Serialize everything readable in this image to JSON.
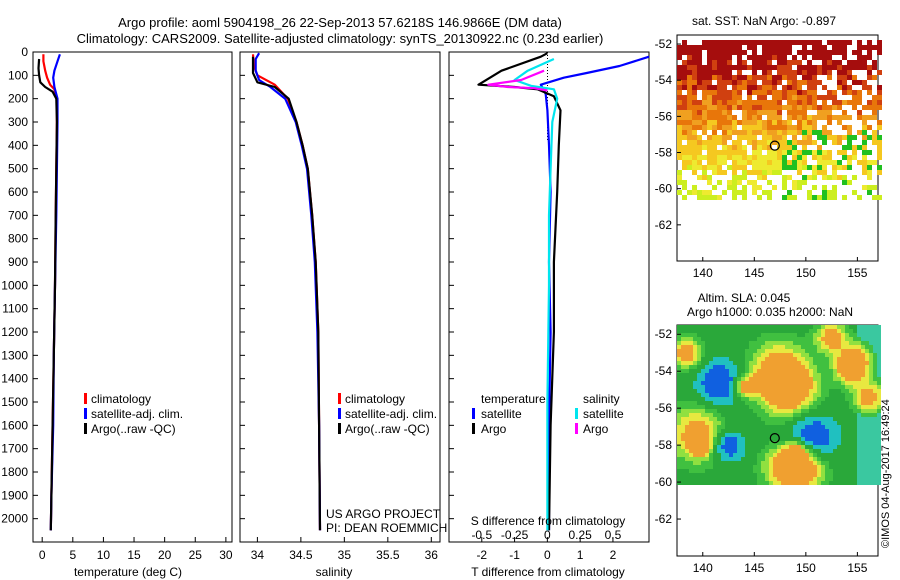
{
  "titles": {
    "line1": "Argo profile: aoml 5904198_26 22-Sep-2013 57.6218S 146.9866E (DM data)",
    "line2": "Climatology: CARS2009. Satellite-adjusted climatology: synTS_20130922.nc (0.23d earlier)"
  },
  "credit": "©IMOS 04-Aug-2017 16:49:24",
  "project": {
    "line1": "US ARGO PROJECT",
    "line2": "PI: DEAN ROEMMICH"
  },
  "colors": {
    "climatology": "#ff0000",
    "satellite": "#0000ff",
    "argo": "#000000",
    "argo_s": "#ff00ff",
    "sat_s": "#00e5ee"
  },
  "depth_axis": {
    "ticks": [
      0,
      100,
      200,
      300,
      400,
      500,
      600,
      700,
      800,
      900,
      1000,
      1100,
      1200,
      1300,
      1400,
      1500,
      1600,
      1700,
      1800,
      1900,
      2000
    ],
    "ylim": [
      0,
      2100
    ]
  },
  "chart_data": [
    {
      "type": "line",
      "title": "",
      "xlabel": "temperature (deg C)",
      "ylabel": "",
      "xlim": [
        -1.5,
        31
      ],
      "ylim": [
        2100,
        0
      ],
      "xticks": [
        0,
        5,
        10,
        15,
        20,
        25,
        30
      ],
      "xtick_labels": [
        "0",
        "5",
        "10",
        "15",
        "20",
        "25",
        "30"
      ],
      "legend": [
        "climatology",
        "satellite-adj. clim.",
        "Argo(..raw -QC)"
      ],
      "series": [
        {
          "name": "climatology",
          "color": "#ff0000",
          "points": [
            [
              0.2,
              10
            ],
            [
              0.2,
              40
            ],
            [
              0.5,
              80
            ],
            [
              0.8,
              110
            ],
            [
              1.3,
              140
            ],
            [
              2.0,
              160
            ],
            [
              2.4,
              200
            ],
            [
              2.4,
              300
            ],
            [
              2.3,
              500
            ],
            [
              2.2,
              700
            ],
            [
              2.1,
              1000
            ],
            [
              1.9,
              1300
            ],
            [
              1.7,
              1600
            ],
            [
              1.5,
              1900
            ],
            [
              1.4,
              2050
            ]
          ]
        },
        {
          "name": "satellite-adj. clim.",
          "color": "#0000ff",
          "points": [
            [
              2.9,
              10
            ],
            [
              2.5,
              40
            ],
            [
              2.0,
              80
            ],
            [
              1.8,
              110
            ],
            [
              2.0,
              150
            ],
            [
              2.5,
              200
            ],
            [
              2.5,
              300
            ],
            [
              2.4,
              500
            ],
            [
              2.3,
              700
            ],
            [
              2.1,
              1000
            ],
            [
              1.9,
              1300
            ],
            [
              1.8,
              1600
            ],
            [
              1.5,
              1900
            ],
            [
              1.4,
              2050
            ]
          ]
        },
        {
          "name": "Argo(..raw -QC)",
          "color": "#000000",
          "points": [
            [
              -0.5,
              30
            ],
            [
              -0.6,
              70
            ],
            [
              -0.5,
              100
            ],
            [
              -0.3,
              130
            ],
            [
              0.5,
              150
            ],
            [
              1.7,
              170
            ],
            [
              2.3,
              200
            ],
            [
              2.4,
              300
            ],
            [
              2.3,
              500
            ],
            [
              2.2,
              700
            ],
            [
              2.1,
              1000
            ],
            [
              1.9,
              1300
            ],
            [
              1.7,
              1600
            ],
            [
              1.5,
              1900
            ],
            [
              1.4,
              2050
            ]
          ]
        }
      ]
    },
    {
      "type": "line",
      "title": "",
      "xlabel": "salinity",
      "ylabel": "",
      "xlim": [
        33.8,
        36.1
      ],
      "ylim": [
        2100,
        0
      ],
      "xticks": [
        34,
        34.5,
        35,
        35.5,
        36
      ],
      "xtick_labels": [
        "34",
        "34.5",
        "35",
        "35.5",
        "36"
      ],
      "legend": [
        "climatology",
        "satellite-adj. clim.",
        "Argo(..raw -QC)"
      ],
      "series": [
        {
          "name": "climatology",
          "color": "#ff0000",
          "points": [
            [
              33.95,
              10
            ],
            [
              33.96,
              60
            ],
            [
              34.0,
              100
            ],
            [
              34.2,
              140
            ],
            [
              34.35,
              200
            ],
            [
              34.45,
              300
            ],
            [
              34.52,
              400
            ],
            [
              34.58,
              500
            ],
            [
              34.63,
              700
            ],
            [
              34.67,
              900
            ],
            [
              34.7,
              1200
            ],
            [
              34.71,
              1600
            ],
            [
              34.72,
              2050
            ]
          ]
        },
        {
          "name": "satellite-adj. clim.",
          "color": "#0000ff",
          "points": [
            [
              34.02,
              5
            ],
            [
              33.98,
              30
            ],
            [
              33.98,
              80
            ],
            [
              34.02,
              120
            ],
            [
              34.15,
              150
            ],
            [
              34.32,
              200
            ],
            [
              34.44,
              300
            ],
            [
              34.51,
              400
            ],
            [
              34.57,
              500
            ],
            [
              34.62,
              700
            ],
            [
              34.66,
              900
            ],
            [
              34.69,
              1200
            ],
            [
              34.71,
              1600
            ],
            [
              34.72,
              2050
            ]
          ]
        },
        {
          "name": "Argo(..raw -QC)",
          "color": "#000000",
          "points": [
            [
              33.95,
              20
            ],
            [
              33.95,
              90
            ],
            [
              34.0,
              130
            ],
            [
              34.2,
              150
            ],
            [
              34.36,
              200
            ],
            [
              34.45,
              300
            ],
            [
              34.52,
              400
            ],
            [
              34.58,
              500
            ],
            [
              34.63,
              700
            ],
            [
              34.67,
              900
            ],
            [
              34.7,
              1200
            ],
            [
              34.71,
              1600
            ],
            [
              34.72,
              2050
            ]
          ]
        }
      ]
    },
    {
      "type": "line",
      "title": "",
      "xlabel": "T difference from climatology",
      "ylabel": "",
      "xlabel_top": "S difference from climatology",
      "xlim": [
        -3.0,
        3.1
      ],
      "ylim": [
        2100,
        0
      ],
      "xticks": [
        -2,
        -1,
        0,
        1,
        2
      ],
      "xtick_labels": [
        "-2",
        "-1",
        "0",
        "1",
        "2"
      ],
      "xticks_top": [
        -2,
        -1,
        0,
        1,
        2
      ],
      "xtick_labels_top": [
        "-0.5",
        "-0.25",
        "0",
        "0.25",
        "0.5"
      ],
      "legend_headers": [
        "temperature",
        "salinity"
      ],
      "legend": [
        "satellite",
        "Argo",
        "satellite",
        "Argo"
      ],
      "series": [
        {
          "name": "temperature satellite",
          "color": "#0000ff",
          "points": [
            [
              3.1,
              20
            ],
            [
              2.2,
              60
            ],
            [
              1.2,
              90
            ],
            [
              0.5,
              110
            ],
            [
              -0.2,
              140
            ],
            [
              -0.05,
              180
            ],
            [
              0.0,
              250
            ],
            [
              0.05,
              400
            ],
            [
              0.1,
              600
            ],
            [
              0.05,
              900
            ],
            [
              0.1,
              1200
            ],
            [
              0.05,
              1600
            ],
            [
              0.05,
              2050
            ]
          ]
        },
        {
          "name": "temperature Argo",
          "color": "#000000",
          "points": [
            [
              0.0,
              5
            ],
            [
              -0.2,
              20
            ],
            [
              -1.4,
              80
            ],
            [
              -2.1,
              140
            ],
            [
              -1.0,
              150
            ],
            [
              -0.3,
              160
            ],
            [
              0.2,
              190
            ],
            [
              0.4,
              250
            ],
            [
              0.35,
              400
            ],
            [
              0.3,
              600
            ],
            [
              0.2,
              900
            ],
            [
              0.2,
              1200
            ],
            [
              0.1,
              1600
            ],
            [
              0.05,
              2050
            ]
          ]
        },
        {
          "name": "salinity satellite",
          "color": "#00e5ee",
          "points": [
            [
              0.2,
              30
            ],
            [
              -0.6,
              80
            ],
            [
              -1.0,
              120
            ],
            [
              -0.5,
              145
            ],
            [
              0.2,
              160
            ],
            [
              0.3,
              200
            ],
            [
              0.15,
              300
            ],
            [
              0.1,
              500
            ],
            [
              0.05,
              700
            ],
            [
              0.05,
              1000
            ],
            [
              0.0,
              1500
            ],
            [
              0.0,
              2050
            ]
          ]
        },
        {
          "name": "salinity Argo",
          "color": "#ff00ff",
          "points": [
            [
              -0.1,
              80
            ],
            [
              -0.8,
              120
            ],
            [
              -1.8,
              140
            ],
            [
              -1.2,
              150
            ],
            [
              -0.4,
              155
            ],
            [
              0.0,
              165
            ]
          ]
        }
      ]
    },
    {
      "type": "heatmap",
      "title": "sat. SST: NaN Argo: -0.897",
      "xlim": [
        137.5,
        157
      ],
      "ylim": [
        -64,
        -51.5
      ],
      "xticks": [
        140,
        145,
        150,
        155
      ],
      "xtick_labels": [
        "140",
        "145",
        "150",
        "155"
      ],
      "yticks": [
        -52,
        -54,
        -56,
        -58,
        -60,
        -62
      ],
      "ytick_labels": [
        "-52",
        "-54",
        "-56",
        "-58",
        "-60",
        "-62"
      ],
      "argo_position": [
        146.99,
        -57.62
      ]
    },
    {
      "type": "heatmap",
      "title": "Altim. SLA: 0.045",
      "subtitle": "Argo h1000: 0.035 h2000: NaN",
      "xlim": [
        137.5,
        157
      ],
      "ylim": [
        -64,
        -51.5
      ],
      "xticks": [
        140,
        145,
        150,
        155
      ],
      "xtick_labels": [
        "140",
        "145",
        "150",
        "155"
      ],
      "yticks": [
        -52,
        -54,
        -56,
        -58,
        -60,
        -62
      ],
      "ytick_labels": [
        "-52",
        "-54",
        "-56",
        "-58",
        "-60",
        "-62"
      ],
      "argo_position": [
        146.99,
        -57.62
      ]
    }
  ]
}
